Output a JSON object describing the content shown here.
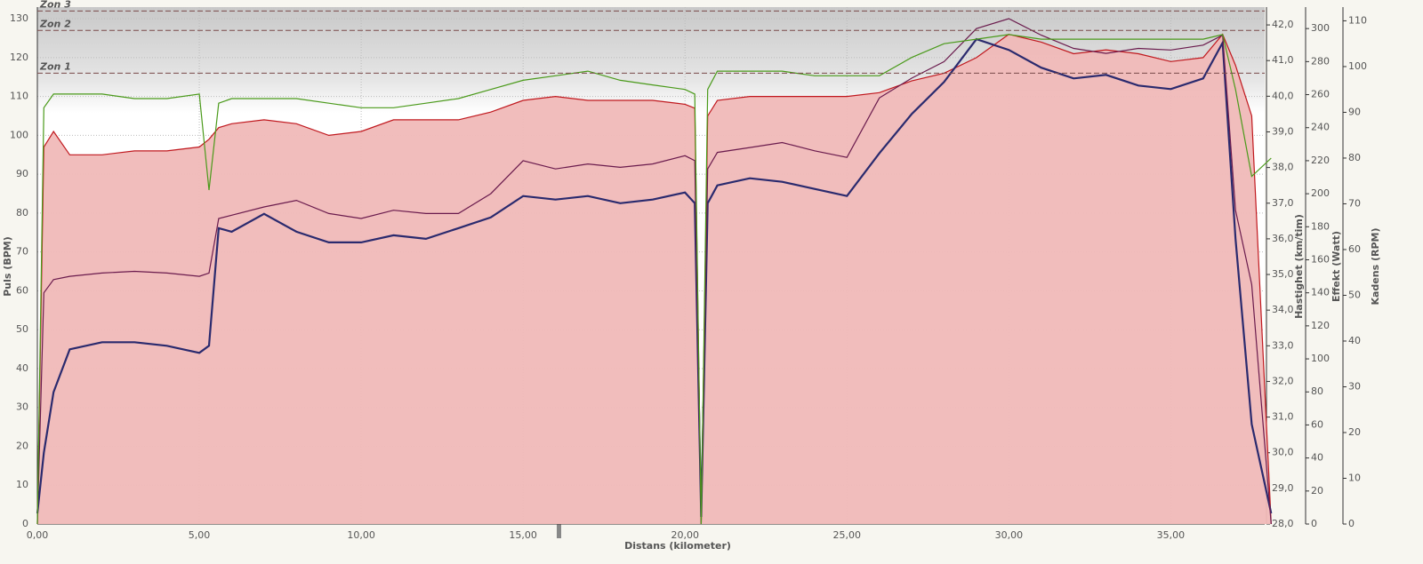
{
  "chart_data": {
    "type": "line",
    "xlabel": "Distans (kilometer)",
    "ylabel": "Puls (BPM)",
    "y2label": "Hastighet (km/tim)",
    "y3label": "Effekt (Watt)",
    "y4label": "Kadens (RPM)",
    "xlim": [
      0,
      37.9
    ],
    "xticks": [
      {
        "value": 0,
        "label": "0,00"
      },
      {
        "value": 5,
        "label": "5,00"
      },
      {
        "value": 10,
        "label": "10,00"
      },
      {
        "value": 15,
        "label": "15,00"
      },
      {
        "value": 20,
        "label": "20,00"
      },
      {
        "value": 25,
        "label": "25,00"
      },
      {
        "value": 30,
        "label": "30,00"
      },
      {
        "value": 35,
        "label": "35,00"
      }
    ],
    "ylim": [
      0,
      133
    ],
    "yticks": [
      0,
      10,
      20,
      30,
      40,
      50,
      60,
      70,
      80,
      90,
      100,
      110,
      120,
      130
    ],
    "y2lim": [
      28,
      42.5
    ],
    "y2ticks": [
      {
        "value": 28,
        "label": "28,0"
      },
      {
        "value": 29,
        "label": "29,0"
      },
      {
        "value": 30,
        "label": "30,0"
      },
      {
        "value": 31,
        "label": "31,0"
      },
      {
        "value": 32,
        "label": "32,0"
      },
      {
        "value": 33,
        "label": "33,0"
      },
      {
        "value": 34,
        "label": "34,0"
      },
      {
        "value": 35,
        "label": "35,0"
      },
      {
        "value": 36,
        "label": "36,0"
      },
      {
        "value": 37,
        "label": "37,0"
      },
      {
        "value": 38,
        "label": "38,0"
      },
      {
        "value": 39,
        "label": "39,0"
      },
      {
        "value": 40,
        "label": "40,0"
      },
      {
        "value": 41,
        "label": "41,0"
      },
      {
        "value": 42,
        "label": "42,0"
      }
    ],
    "y3lim": [
      0,
      313
    ],
    "y3ticks": [
      0,
      20,
      40,
      60,
      80,
      100,
      120,
      140,
      160,
      180,
      200,
      220,
      240,
      260,
      280,
      300
    ],
    "y4lim": [
      0,
      113
    ],
    "y4ticks": [
      0,
      10,
      20,
      30,
      40,
      50,
      60,
      70,
      80,
      90,
      100,
      110
    ],
    "grid": true,
    "zones": [
      {
        "name": "Zon 1",
        "value": 116
      },
      {
        "name": "Zon 2",
        "value": 127
      },
      {
        "name": "Zon 3",
        "value": 132
      }
    ],
    "x": [
      0,
      0.2,
      0.5,
      1,
      2,
      3,
      4,
      5,
      5.3,
      5.6,
      6,
      7,
      8,
      9,
      10,
      11,
      12,
      13,
      14,
      15,
      16,
      17,
      18,
      19,
      20,
      20.3,
      20.5,
      20.7,
      21,
      22,
      23,
      24,
      25,
      26,
      27,
      28,
      29,
      30,
      31,
      32,
      33,
      34,
      35,
      36,
      36.6,
      37,
      37.5,
      38.1
    ],
    "series": [
      {
        "name": "Puls",
        "axis": "y",
        "color": "#c0181e",
        "fill": "#f0b9b8",
        "values": [
          0,
          97,
          101,
          95,
          95,
          96,
          96,
          97,
          99,
          102,
          103,
          104,
          103,
          100,
          101,
          104,
          104,
          104,
          106,
          109,
          110,
          109,
          109,
          109,
          108,
          107,
          0,
          105,
          109,
          110,
          110,
          110,
          110,
          111,
          114,
          116,
          120,
          126,
          124,
          121,
          122,
          121,
          119,
          120,
          126,
          118,
          105,
          0
        ]
      },
      {
        "name": "Hastighet",
        "axis": "y2",
        "color": "#2a2a6e",
        "values": [
          28.3,
          30,
          31.7,
          32.9,
          33.1,
          33.1,
          33,
          32.8,
          33,
          36.3,
          36.2,
          36.7,
          36.2,
          35.9,
          35.9,
          36.1,
          36,
          36.3,
          36.6,
          37.2,
          37.1,
          37.2,
          37,
          37.1,
          37.3,
          37,
          28.2,
          37,
          37.5,
          37.7,
          37.6,
          37.4,
          37.2,
          38.4,
          39.5,
          40.4,
          41.6,
          41.3,
          40.8,
          40.5,
          40.6,
          40.3,
          40.2,
          40.5,
          41.5,
          36,
          30.8,
          28.3
        ]
      },
      {
        "name": "Effekt",
        "axis": "y3",
        "color": "#6a1b4d",
        "values": [
          0,
          140,
          148,
          150,
          152,
          153,
          152,
          150,
          152,
          185,
          187,
          192,
          196,
          188,
          185,
          190,
          188,
          188,
          200,
          220,
          215,
          218,
          216,
          218,
          223,
          220,
          0,
          215,
          225,
          228,
          231,
          226,
          222,
          258,
          270,
          280,
          300,
          306,
          296,
          288,
          285,
          288,
          287,
          290,
          296,
          190,
          145,
          0
        ]
      },
      {
        "name": "Kadens",
        "axis": "y4",
        "color": "#4a9a1a",
        "values": [
          0,
          91,
          94,
          94,
          94,
          93,
          93,
          94,
          73,
          92,
          93,
          93,
          93,
          92,
          91,
          91,
          92,
          93,
          95,
          97,
          98,
          99,
          97,
          96,
          95,
          94,
          0,
          95,
          99,
          99,
          99,
          98,
          98,
          98,
          102,
          105,
          106,
          107,
          106,
          106,
          106,
          106,
          106,
          106,
          107,
          95,
          76,
          80
        ]
      }
    ]
  }
}
